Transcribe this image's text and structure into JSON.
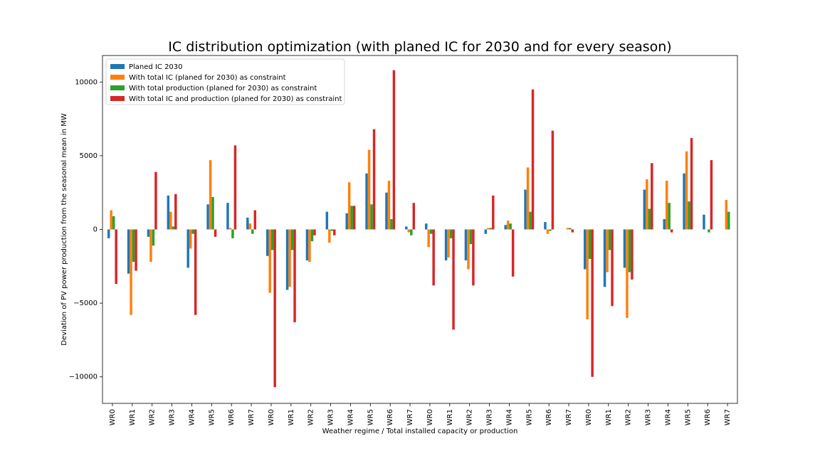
{
  "chart_data": {
    "type": "bar",
    "title": "IC distribution optimization (with planed IC for 2030 and for every season)",
    "xlabel": "Weather regime / Total installed capacity or production",
    "ylabel": "Deviation of PV power production from the seasonal mean in MW",
    "ylim": [
      -11800,
      11800
    ],
    "yticks": [
      -10000,
      -5000,
      0,
      5000,
      10000
    ],
    "ytick_labels": [
      "−10000",
      "−5000",
      "0",
      "5000",
      "10000"
    ],
    "grid": false,
    "legend_position": "top-left",
    "categories": [
      "WR0",
      "WR1",
      "WR2",
      "WR3",
      "WR4",
      "WR5",
      "WR6",
      "WR7",
      "WR0",
      "WR1",
      "WR2",
      "WR3",
      "WR4",
      "WR5",
      "WR6",
      "WR7",
      "WR0",
      "WR1",
      "WR2",
      "WR3",
      "WR4",
      "WR5",
      "WR6",
      "WR7",
      "WR0",
      "WR1",
      "WR2",
      "WR3",
      "WR4",
      "WR5",
      "WR6",
      "WR7"
    ],
    "series": [
      {
        "name": "Planed IC 2030",
        "color": "#1f77b4",
        "values": [
          -600,
          -3000,
          -500,
          2300,
          -2600,
          1700,
          1800,
          800,
          -1800,
          -4100,
          -2100,
          1200,
          1100,
          3800,
          2500,
          200,
          400,
          -2100,
          -2100,
          -300,
          300,
          2700,
          500,
          0,
          -2700,
          -3900,
          -2600,
          2700,
          700,
          3800,
          1000,
          0
        ]
      },
      {
        "name": "With total IC (planed for 2030) as constraint",
        "color": "#ff7f0e",
        "values": [
          1300,
          -5800,
          -2200,
          1200,
          -1300,
          4700,
          100,
          400,
          -4300,
          -3900,
          -2200,
          -900,
          3200,
          5400,
          3300,
          -200,
          -1200,
          -1900,
          -2700,
          100,
          600,
          4200,
          -300,
          100,
          -6100,
          -2900,
          -6000,
          3400,
          3300,
          5300,
          0,
          2000
        ]
      },
      {
        "name": "With total production (planed for 2030) as constraint",
        "color": "#2ca02c",
        "values": [
          900,
          -2200,
          -1100,
          200,
          -300,
          2200,
          -600,
          -300,
          -1400,
          -1400,
          -800,
          -100,
          1600,
          1700,
          700,
          -400,
          -300,
          -600,
          -1000,
          100,
          400,
          1200,
          -100,
          100,
          -2000,
          -1400,
          -2900,
          1400,
          1800,
          1900,
          -200,
          1200
        ]
      },
      {
        "name": "With total IC and production (planed for 2030) as constraint",
        "color": "#d62728",
        "values": [
          -3700,
          -2800,
          3900,
          2400,
          -5800,
          -500,
          5700,
          1300,
          -10700,
          -6300,
          -400,
          -400,
          1600,
          6800,
          10800,
          1800,
          -3800,
          -6800,
          -3800,
          2300,
          -3200,
          9500,
          6700,
          -200,
          -10000,
          -5200,
          -3400,
          4500,
          -200,
          6200,
          4700,
          0
        ]
      }
    ]
  }
}
